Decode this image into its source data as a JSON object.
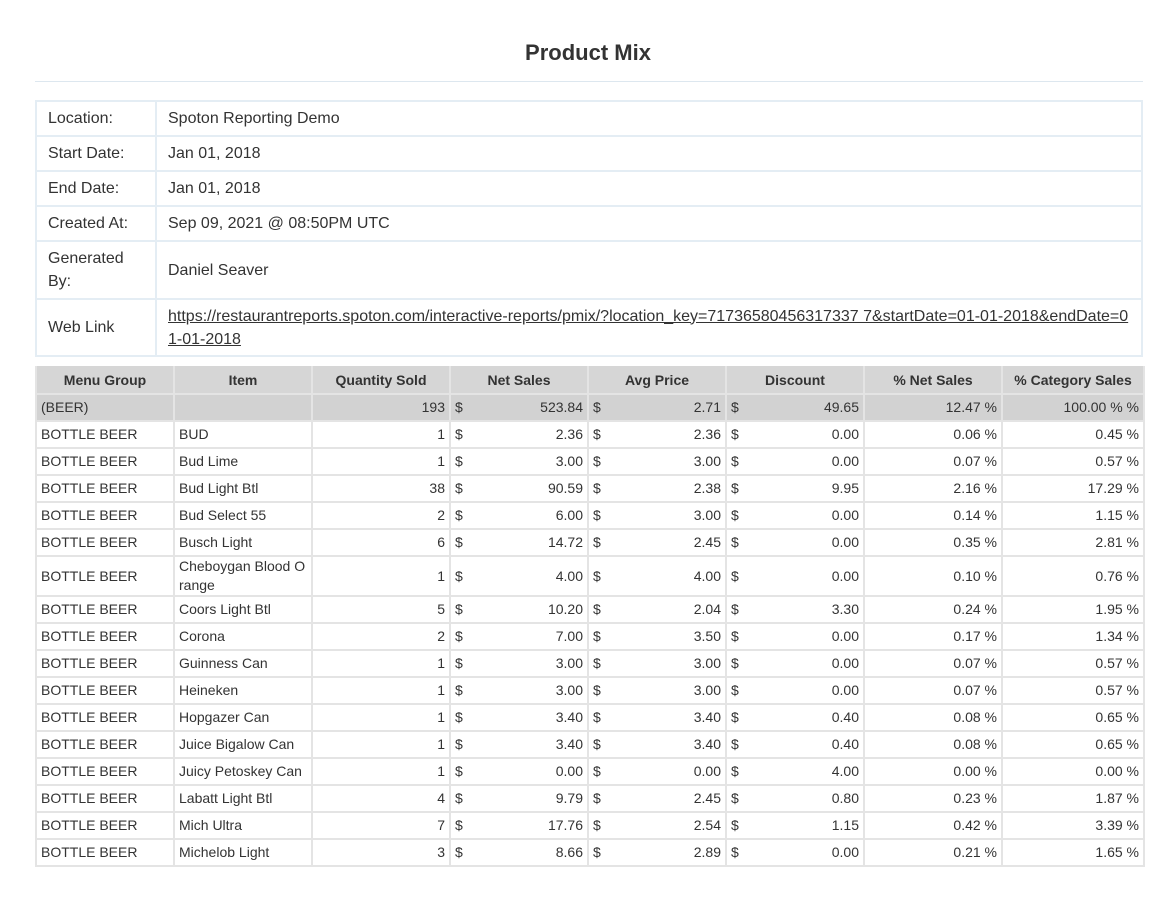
{
  "report": {
    "title": "Product Mix"
  },
  "info": [
    {
      "label": "Location:",
      "value": "Spoton Reporting Demo"
    },
    {
      "label": "Start Date:",
      "value": "Jan 01, 2018"
    },
    {
      "label": "End Date:",
      "value": "Jan 01, 2018"
    },
    {
      "label": "Created At:",
      "value": "Sep 09, 2021 @ 08:50PM UTC"
    },
    {
      "label": "Generated By:",
      "value": "Daniel Seaver"
    },
    {
      "label": "Web Link",
      "value": "https://restaurantreports.spoton.com/interactive-reports/pmix/?location_key=71736580456317337 7&startDate=01-01-2018&endDate=01-01-2018"
    }
  ],
  "columns": [
    "Menu Group",
    "Item",
    "Quantity Sold",
    "Net Sales",
    "Avg Price",
    "Discount",
    "% Net Sales",
    "% Category Sales"
  ],
  "currency_symbol": "$",
  "group_row": {
    "group": "(BEER)",
    "item": "",
    "qty": "193",
    "net": "523.84",
    "avg": "2.71",
    "disc": "49.65",
    "pct_net": "12.47 %",
    "pct_cat": "100.00 % %"
  },
  "rows": [
    {
      "group": "BOTTLE BEER",
      "item": "BUD",
      "qty": "1",
      "net": "2.36",
      "avg": "2.36",
      "disc": "0.00",
      "pct_net": "0.06 %",
      "pct_cat": "0.45 %"
    },
    {
      "group": "BOTTLE BEER",
      "item": "Bud  Lime",
      "qty": "1",
      "net": "3.00",
      "avg": "3.00",
      "disc": "0.00",
      "pct_net": "0.07 %",
      "pct_cat": "0.57 %"
    },
    {
      "group": "BOTTLE BEER",
      "item": "Bud Light Btl",
      "qty": "38",
      "net": "90.59",
      "avg": "2.38",
      "disc": "9.95",
      "pct_net": "2.16 %",
      "pct_cat": "17.29 %"
    },
    {
      "group": "BOTTLE BEER",
      "item": "Bud Select 55",
      "qty": "2",
      "net": "6.00",
      "avg": "3.00",
      "disc": "0.00",
      "pct_net": "0.14 %",
      "pct_cat": "1.15 %"
    },
    {
      "group": "BOTTLE BEER",
      "item": "Busch Light",
      "qty": "6",
      "net": "14.72",
      "avg": "2.45",
      "disc": "0.00",
      "pct_net": "0.35 %",
      "pct_cat": "2.81 %"
    },
    {
      "group": "BOTTLE BEER",
      "item": "Cheboygan Blood Orange",
      "qty": "1",
      "net": "4.00",
      "avg": "4.00",
      "disc": "0.00",
      "pct_net": "0.10 %",
      "pct_cat": "0.76 %"
    },
    {
      "group": "BOTTLE BEER",
      "item": "Coors Light Btl",
      "qty": "5",
      "net": "10.20",
      "avg": "2.04",
      "disc": "3.30",
      "pct_net": "0.24 %",
      "pct_cat": "1.95 %"
    },
    {
      "group": "BOTTLE BEER",
      "item": "Corona",
      "qty": "2",
      "net": "7.00",
      "avg": "3.50",
      "disc": "0.00",
      "pct_net": "0.17 %",
      "pct_cat": "1.34 %"
    },
    {
      "group": "BOTTLE BEER",
      "item": "Guinness Can",
      "qty": "1",
      "net": "3.00",
      "avg": "3.00",
      "disc": "0.00",
      "pct_net": "0.07 %",
      "pct_cat": "0.57 %"
    },
    {
      "group": "BOTTLE BEER",
      "item": "Heineken",
      "qty": "1",
      "net": "3.00",
      "avg": "3.00",
      "disc": "0.00",
      "pct_net": "0.07 %",
      "pct_cat": "0.57 %"
    },
    {
      "group": "BOTTLE BEER",
      "item": "Hopgazer Can",
      "qty": "1",
      "net": "3.40",
      "avg": "3.40",
      "disc": "0.40",
      "pct_net": "0.08 %",
      "pct_cat": "0.65 %"
    },
    {
      "group": "BOTTLE BEER",
      "item": "Juice Bigalow Can",
      "qty": "1",
      "net": "3.40",
      "avg": "3.40",
      "disc": "0.40",
      "pct_net": "0.08 %",
      "pct_cat": "0.65 %"
    },
    {
      "group": "BOTTLE BEER",
      "item": "Juicy Petoskey Can",
      "qty": "1",
      "net": "0.00",
      "avg": "0.00",
      "disc": "4.00",
      "pct_net": "0.00 %",
      "pct_cat": "0.00 %"
    },
    {
      "group": "BOTTLE BEER",
      "item": "Labatt Light Btl",
      "qty": "4",
      "net": "9.79",
      "avg": "2.45",
      "disc": "0.80",
      "pct_net": "0.23 %",
      "pct_cat": "1.87 %"
    },
    {
      "group": "BOTTLE BEER",
      "item": "Mich Ultra",
      "qty": "7",
      "net": "17.76",
      "avg": "2.54",
      "disc": "1.15",
      "pct_net": "0.42 %",
      "pct_cat": "3.39 %"
    },
    {
      "group": "BOTTLE BEER",
      "item": "Michelob Light",
      "qty": "3",
      "net": "8.66",
      "avg": "2.89",
      "disc": "0.00",
      "pct_net": "0.21 %",
      "pct_cat": "1.65 %"
    }
  ]
}
